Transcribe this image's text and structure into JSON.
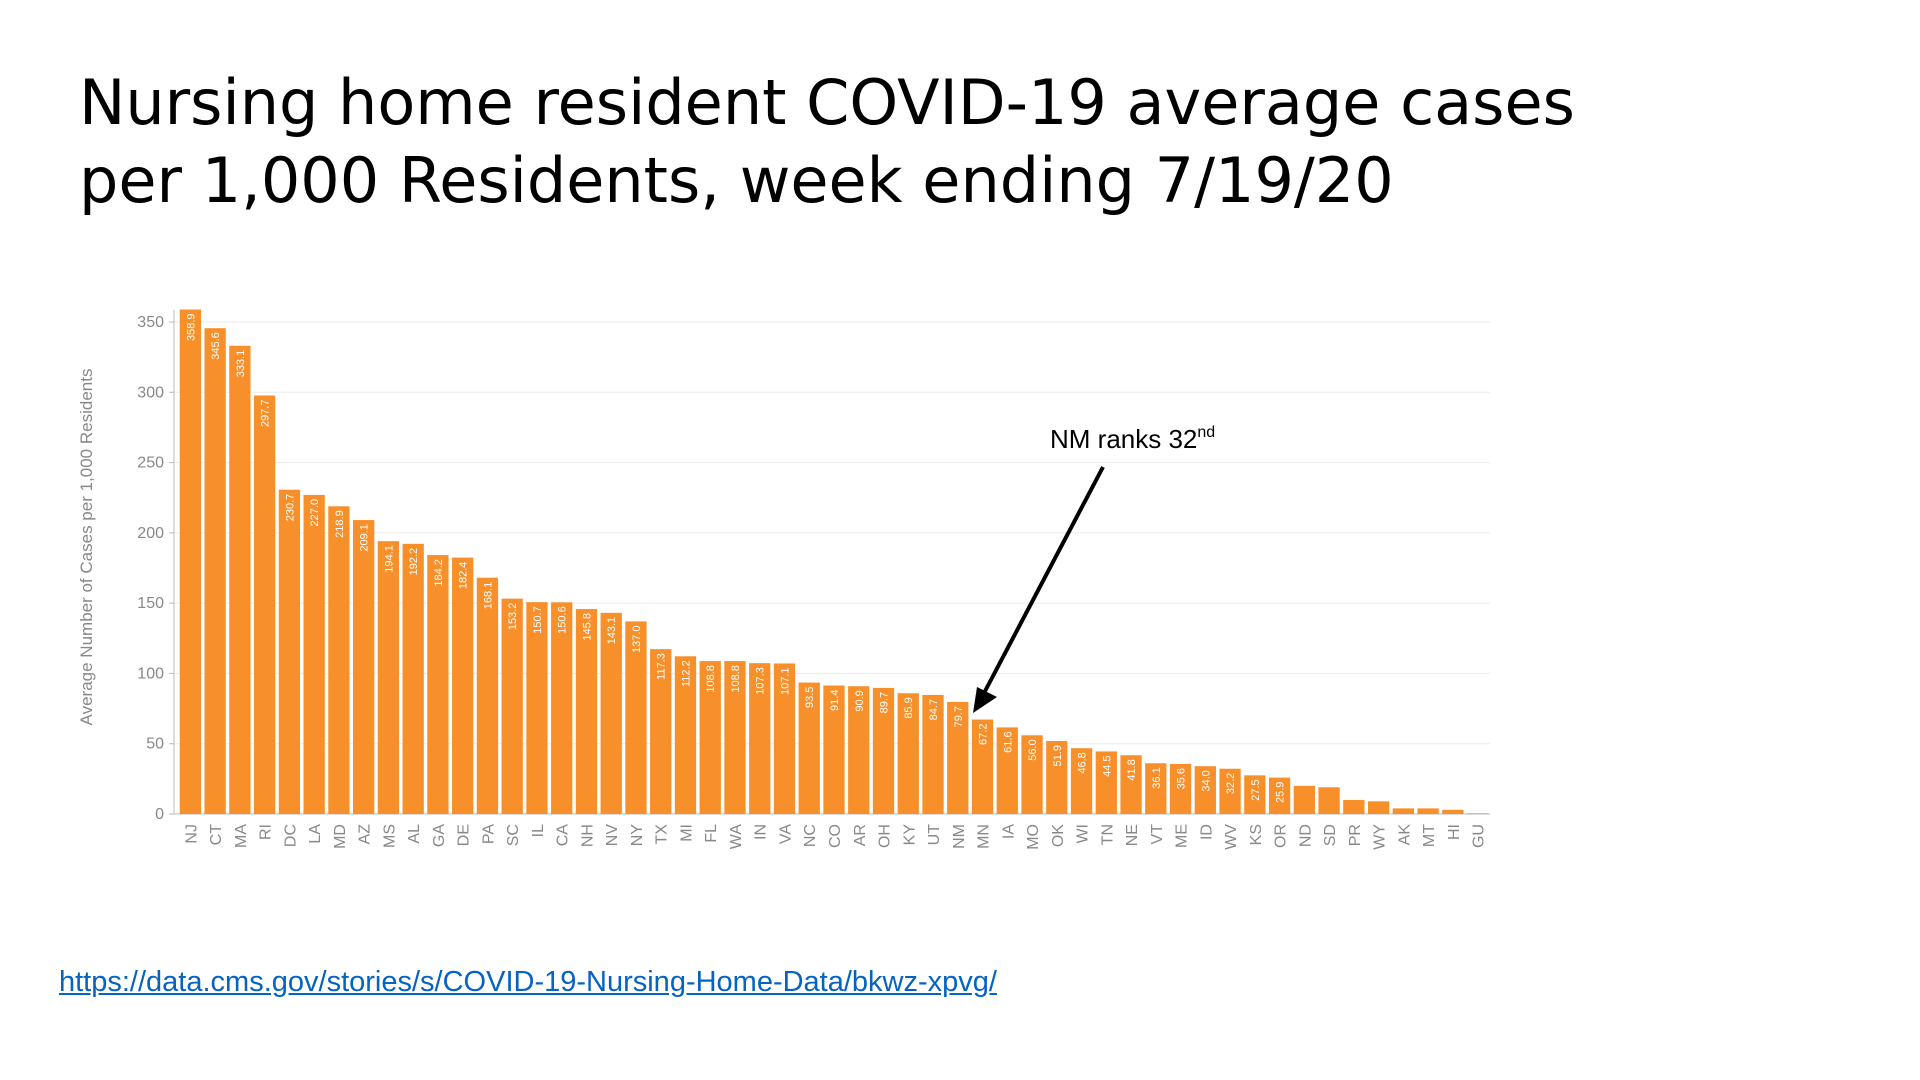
{
  "slide": {
    "title_line1": "Nursing home resident COVID-19 average cases",
    "title_line2": "per 1,000 Residents, week ending 7/19/20",
    "source_url": "https://data.cms.gov/stories/s/COVID-19-Nursing-Home-Data/bkwz-xpvg/"
  },
  "annotation": {
    "text": "NM ranks 32",
    "superscript": "nd"
  },
  "colors": {
    "bar": "#F7902B",
    "bar_label": "#ffffff",
    "axis_text": "#888888",
    "grid": "#ebebeb",
    "link": "#0563C1"
  },
  "chart_data": {
    "type": "bar",
    "ylabel": "Average Number of Cases per 1,000 Residents",
    "xlabel": "",
    "ylim": [
      0,
      350
    ],
    "yticks": [
      0,
      50,
      100,
      150,
      200,
      250,
      300,
      350
    ],
    "grid": true,
    "categories": [
      "NJ",
      "CT",
      "MA",
      "RI",
      "DC",
      "LA",
      "MD",
      "AZ",
      "MS",
      "AL",
      "GA",
      "DE",
      "PA",
      "SC",
      "IL",
      "CA",
      "NH",
      "NV",
      "NY",
      "TX",
      "MI",
      "FL",
      "WA",
      "IN",
      "VA",
      "NC",
      "CO",
      "AR",
      "OH",
      "KY",
      "UT",
      "NM",
      "MN",
      "IA",
      "MO",
      "OK",
      "WI",
      "TN",
      "NE",
      "VT",
      "ME",
      "ID",
      "WV",
      "KS",
      "OR",
      "ND",
      "SD",
      "PR",
      "WY",
      "AK",
      "MT",
      "HI",
      "GU"
    ],
    "values": [
      358.9,
      345.6,
      333.1,
      297.7,
      230.7,
      227.0,
      218.9,
      209.1,
      194.1,
      192.2,
      184.2,
      182.4,
      168.1,
      153.2,
      150.7,
      150.6,
      145.8,
      143.1,
      137.0,
      117.3,
      112.2,
      108.8,
      108.8,
      107.3,
      107.1,
      93.5,
      91.4,
      90.9,
      89.7,
      85.9,
      84.7,
      79.7,
      67.2,
      61.6,
      56.0,
      51.9,
      46.8,
      44.5,
      41.8,
      36.1,
      35.6,
      34.0,
      32.2,
      27.5,
      25.9,
      20.0,
      19.0,
      10.0,
      9.0,
      4.0,
      4.0,
      3.0,
      0.5
    ],
    "data_labels": [
      "358.9",
      "345.6",
      "333.1",
      "297.7",
      "230.7",
      "227.0",
      "218.9",
      "209.1",
      "194.1",
      "192.2",
      "184.2",
      "182.4",
      "168.1",
      "153.2",
      "150.7",
      "150.6",
      "145.8",
      "143.1",
      "137.0",
      "117.3",
      "112.2",
      "108.8",
      "108.8",
      "107.3",
      "107.1",
      "93.5",
      "91.4",
      "90.9",
      "89.7",
      "85.9",
      "84.7",
      "79.7",
      "67.2",
      "61.6",
      "56.0",
      "51.9",
      "46.8",
      "44.5",
      "41.8",
      "36.1",
      "35.6",
      "34.0",
      "32.2",
      "27.5",
      "25.9",
      "",
      "",
      "",
      "",
      "",
      "",
      "",
      ""
    ]
  }
}
